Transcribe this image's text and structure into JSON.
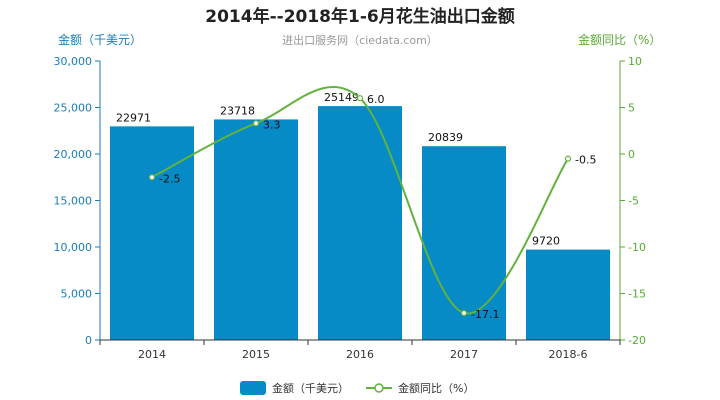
{
  "chart_data": {
    "type": "bar+line",
    "title": "2014年--2018年1-6月花生油出口金额",
    "subtitle": "进出口服务网（ciedata.com）",
    "categories": [
      "2014",
      "2015",
      "2016",
      "2017",
      "2018-6"
    ],
    "series": [
      {
        "name": "金额（千美元）",
        "type": "bar",
        "axis": "left",
        "values": [
          22971,
          23718,
          25149,
          20839,
          9720
        ]
      },
      {
        "name": "金额同比（%）",
        "type": "line",
        "axis": "right",
        "values": [
          -2.5,
          3.3,
          6.0,
          -17.1,
          -0.5
        ]
      }
    ],
    "bar_labels": [
      "22971",
      "23718",
      "25149",
      "20839",
      "9720"
    ],
    "line_labels": [
      "-2.5",
      "3.3",
      "6.0",
      "-17.1",
      "-0.5"
    ],
    "left_axis": {
      "label": "金额（千美元）",
      "ylim": [
        0,
        30000
      ],
      "ticks": [
        0,
        5000,
        10000,
        15000,
        20000,
        25000,
        30000
      ],
      "tick_labels": [
        "0",
        "5,000",
        "10,000",
        "15,000",
        "20,000",
        "25,000",
        "30,000"
      ]
    },
    "right_axis": {
      "label": "金额同比（%）",
      "ylim": [
        -20,
        10
      ],
      "ticks": [
        -20,
        -15,
        -10,
        -5,
        0,
        5,
        10
      ],
      "tick_labels": [
        "-20",
        "-15",
        "-10",
        "-5",
        "0",
        "5",
        "10"
      ]
    },
    "legend": [
      "金额（千美元）",
      "金额同比（%）"
    ],
    "legend_position": "bottom",
    "grid": false,
    "colors": {
      "bar": "#078bc6",
      "line": "#62b33e",
      "left_axis": "#1a7db8",
      "right_axis": "#5aaa33"
    }
  }
}
